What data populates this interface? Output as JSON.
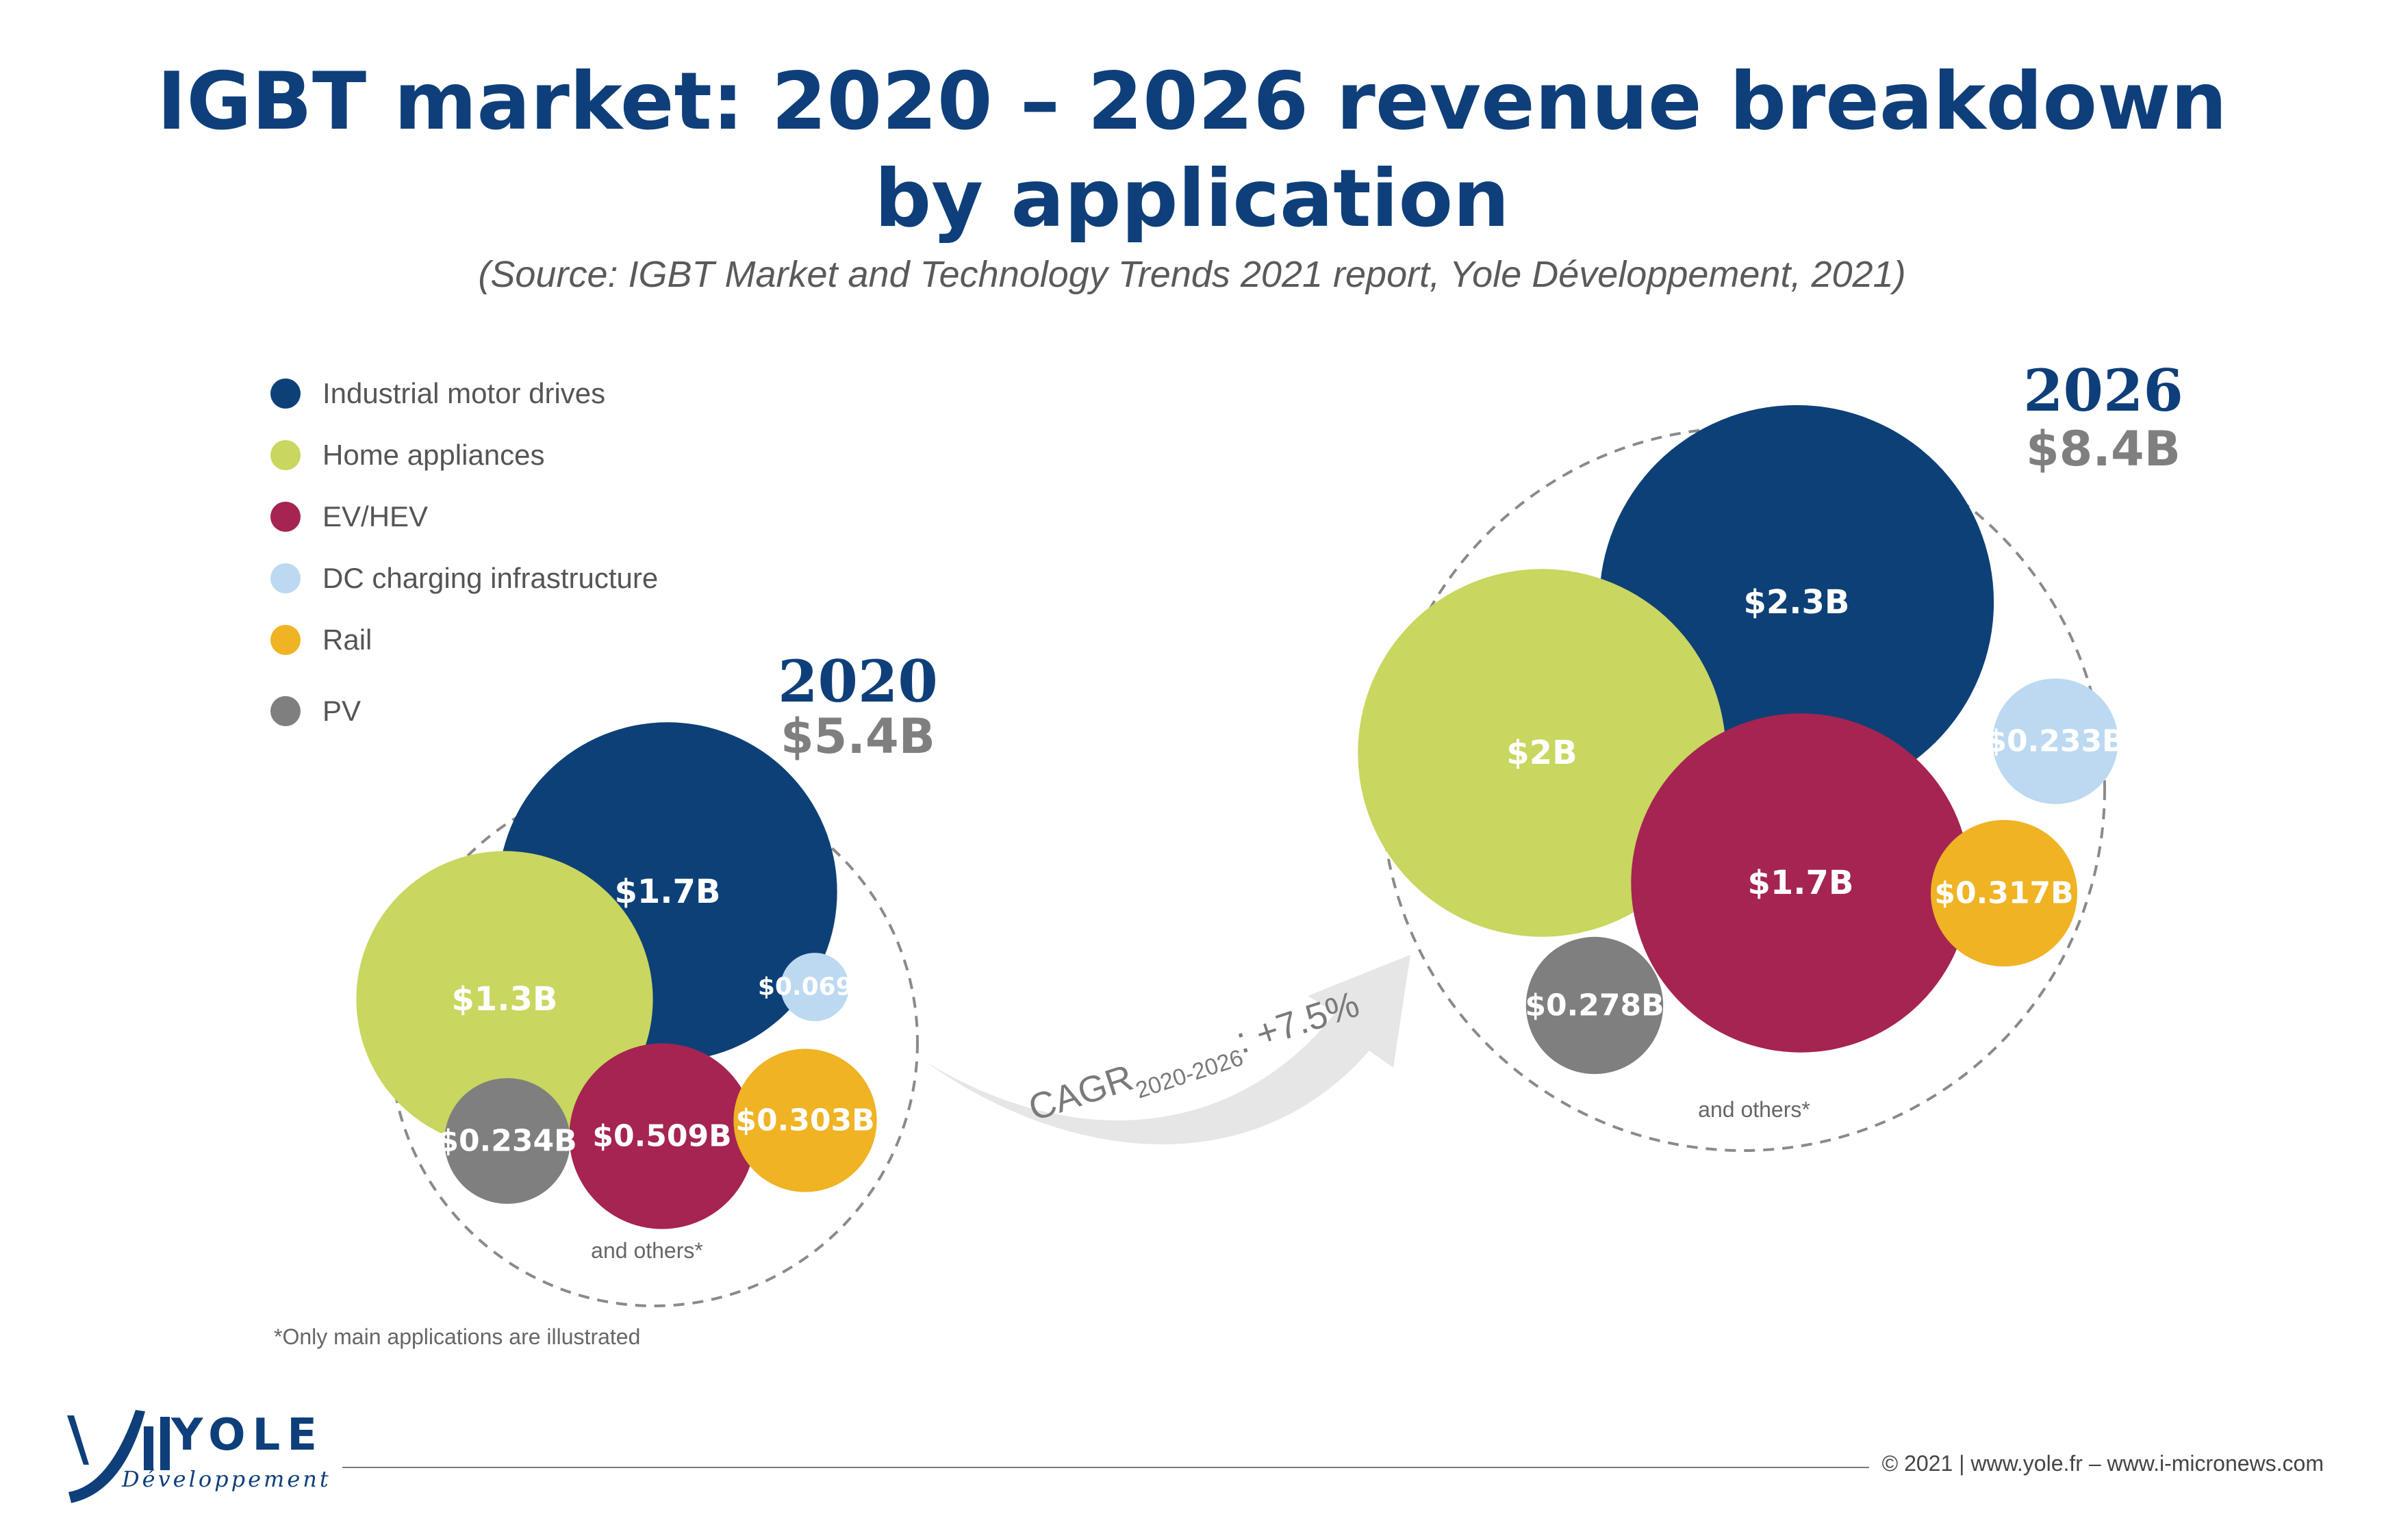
{
  "title": {
    "line1": "IGBT market: 2020 – 2026 revenue breakdown",
    "line2": "by application"
  },
  "source": "(Source: IGBT Market and Technology Trends 2021 report, Yole Développement, 2021)",
  "legend": [
    {
      "label": "Industrial motor drives",
      "color": "#0d4077"
    },
    {
      "label": "Home appliances",
      "color": "#c9d65f"
    },
    {
      "label": "EV/HEV",
      "color": "#a52451"
    },
    {
      "label": "DC charging infrastructure",
      "color": "#bcd9f1"
    },
    {
      "label": "Rail",
      "color": "#efb324"
    },
    {
      "label": "PV",
      "color": "#7f7f7f"
    }
  ],
  "chart_data": {
    "type": "bubble",
    "groups": [
      {
        "year": "2020",
        "total": "$5.4B",
        "others_note": "and others*",
        "items": [
          {
            "category": "Industrial motor drives",
            "label": "$1.7B",
            "value": 1.7
          },
          {
            "category": "Home appliances",
            "label": "$1.3B",
            "value": 1.3
          },
          {
            "category": "EV/HEV",
            "label": "$0.509B",
            "value": 0.509
          },
          {
            "category": "DC charging infrastructure",
            "label": "$0.069B",
            "value": 0.069
          },
          {
            "category": "Rail",
            "label": "$0.303B",
            "value": 0.303
          },
          {
            "category": "PV",
            "label": "$0.234B",
            "value": 0.234
          }
        ]
      },
      {
        "year": "2026",
        "total": "$8.4B",
        "others_note": "and others*",
        "items": [
          {
            "category": "Industrial motor drives",
            "label": "$2.3B",
            "value": 2.3
          },
          {
            "category": "Home appliances",
            "label": "$2B",
            "value": 2.0
          },
          {
            "category": "EV/HEV",
            "label": "$1.7B",
            "value": 1.7
          },
          {
            "category": "DC charging infrastructure",
            "label": "$0.233B",
            "value": 0.233
          },
          {
            "category": "Rail",
            "label": "$0.317B",
            "value": 0.317
          },
          {
            "category": "PV",
            "label": "$0.278B",
            "value": 0.278
          }
        ]
      }
    ],
    "cagr": {
      "prefix": "CAGR",
      "sub": "2020-2026",
      "value": ": +7.5%"
    }
  },
  "footnote": "*Only main applications are illustrated",
  "footer": "© 2021 | www.yole.fr – www.i-micronews.com",
  "logo": {
    "word": "YOLE",
    "sub": "Développement"
  }
}
